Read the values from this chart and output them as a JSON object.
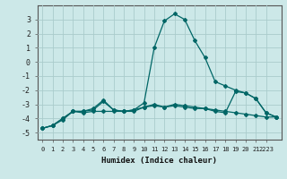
{
  "title": "",
  "xlabel": "Humidex (Indice chaleur)",
  "background_color": "#cce8e8",
  "grid_color": "#aacccc",
  "line_color": "#006666",
  "x_values": [
    0,
    1,
    2,
    3,
    4,
    5,
    6,
    7,
    8,
    9,
    10,
    11,
    12,
    13,
    14,
    15,
    16,
    17,
    18,
    19,
    20,
    21,
    22,
    23
  ],
  "series": [
    [
      -4.7,
      -4.5,
      -4.1,
      -3.5,
      -3.5,
      -3.3,
      -2.7,
      -3.4,
      -3.5,
      -3.5,
      -3.2,
      -3.0,
      -3.2,
      -3.1,
      -3.2,
      -3.3,
      -3.3,
      -3.4,
      -3.5,
      -3.6,
      -3.7,
      -3.8,
      -3.9,
      -3.9
    ],
    [
      -4.7,
      -4.5,
      -4.0,
      -3.5,
      -3.6,
      -3.5,
      -3.5,
      -3.5,
      -3.5,
      -3.4,
      -3.2,
      -3.1,
      -3.2,
      -3.0,
      -3.1,
      -3.2,
      -3.3,
      -3.5,
      -3.6,
      -2.1,
      -2.2,
      -2.6,
      -3.6,
      -3.9
    ],
    [
      -4.7,
      -4.5,
      -4.0,
      -3.5,
      -3.5,
      -3.4,
      -2.8,
      -3.4,
      -3.5,
      -3.4,
      -2.9,
      1.0,
      2.9,
      3.4,
      3.0,
      1.5,
      0.3,
      -1.4,
      -1.7,
      -2.0,
      -2.2,
      -2.6,
      -3.6,
      -3.9
    ]
  ],
  "xlim": [
    -0.5,
    23.5
  ],
  "ylim": [
    -5.5,
    4.0
  ],
  "yticks": [
    -5,
    -4,
    -3,
    -2,
    -1,
    0,
    1,
    2,
    3
  ],
  "ytick_labels": [
    "-5",
    "-4",
    "-3",
    "-2",
    "-1",
    "0",
    "1",
    "2",
    "3"
  ],
  "xtick_positions": [
    0,
    1,
    2,
    3,
    4,
    5,
    6,
    7,
    8,
    9,
    10,
    11,
    12,
    13,
    14,
    15,
    16,
    17,
    18,
    19,
    20,
    21,
    22
  ],
  "xtick_labels": [
    "0",
    "1",
    "2",
    "3",
    "4",
    "5",
    "6",
    "7",
    "8",
    "9",
    "10",
    "11",
    "12",
    "13",
    "14",
    "15",
    "16",
    "17",
    "18",
    "19",
    "20",
    "21",
    "2223"
  ]
}
